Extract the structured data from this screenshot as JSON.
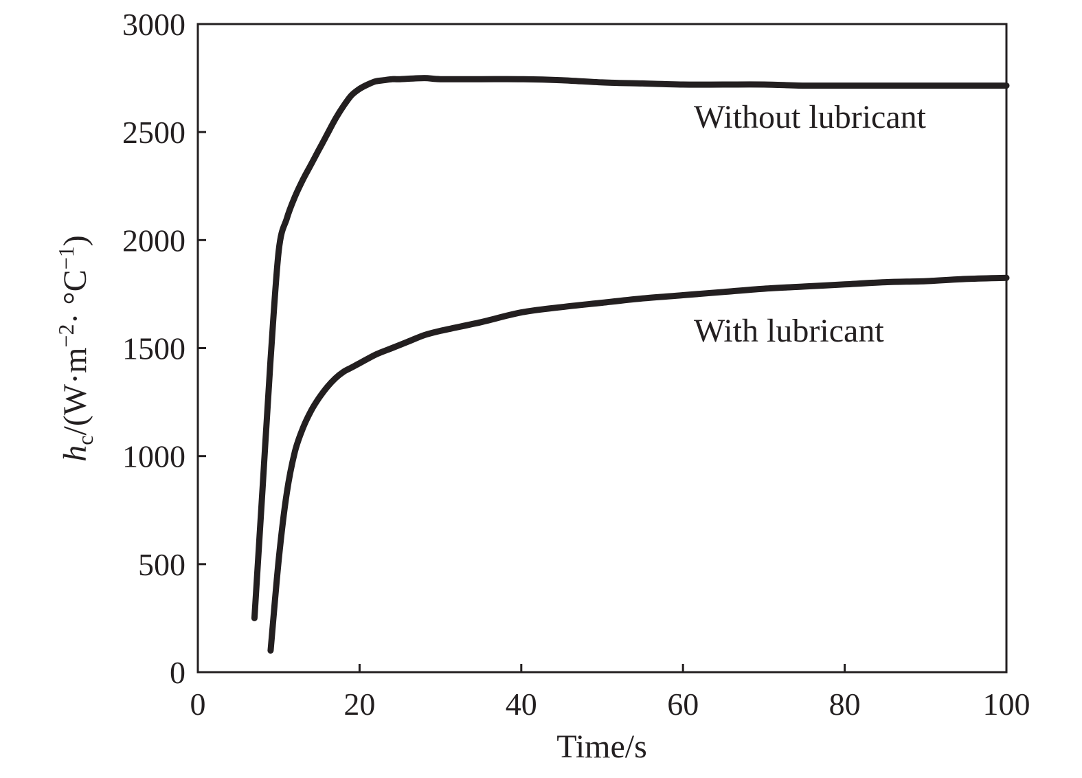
{
  "chart_data": {
    "type": "line",
    "title": "",
    "xlabel": "Time/s",
    "ylabel": {
      "symbol": "h",
      "subscript": "c",
      "unit_open": "/(W·m",
      "exp1": "−2",
      "unit_mid": "· °C",
      "exp2": "−1",
      "unit_close": ")"
    },
    "xlim": [
      0,
      100
    ],
    "ylim": [
      0,
      3000
    ],
    "xticks": [
      "0",
      "20",
      "40",
      "60",
      "80",
      "100"
    ],
    "yticks": [
      "0",
      "500",
      "1000",
      "1500",
      "2000",
      "2500",
      "3000"
    ],
    "grid": false,
    "legend": "inline labels",
    "series": [
      {
        "name": "Without lubricant",
        "x": [
          7,
          8,
          9,
          10,
          11,
          12,
          13,
          14,
          15,
          16,
          17,
          18,
          19,
          20,
          21,
          22,
          23,
          24,
          25,
          28,
          30,
          35,
          40,
          45,
          50,
          55,
          60,
          65,
          70,
          75,
          80,
          85,
          90,
          95,
          100
        ],
        "y": [
          250,
          850,
          1450,
          1950,
          2100,
          2200,
          2280,
          2350,
          2420,
          2490,
          2560,
          2620,
          2670,
          2700,
          2720,
          2735,
          2740,
          2745,
          2745,
          2750,
          2745,
          2745,
          2745,
          2740,
          2730,
          2725,
          2720,
          2720,
          2720,
          2715,
          2715,
          2715,
          2715,
          2715,
          2715
        ]
      },
      {
        "name": "With lubricant",
        "x": [
          9,
          10,
          11,
          12,
          13,
          14,
          15,
          16,
          17,
          18,
          19,
          20,
          22,
          24,
          26,
          28,
          30,
          35,
          40,
          45,
          50,
          55,
          60,
          65,
          70,
          75,
          80,
          85,
          90,
          95,
          100
        ],
        "y": [
          100,
          520,
          830,
          1020,
          1130,
          1210,
          1270,
          1320,
          1360,
          1390,
          1410,
          1430,
          1470,
          1500,
          1530,
          1560,
          1580,
          1620,
          1665,
          1690,
          1710,
          1730,
          1745,
          1760,
          1775,
          1785,
          1795,
          1805,
          1810,
          1820,
          1825
        ]
      }
    ],
    "colors": {
      "line": "#231f20",
      "axis": "#231f20",
      "background": "#ffffff"
    }
  }
}
